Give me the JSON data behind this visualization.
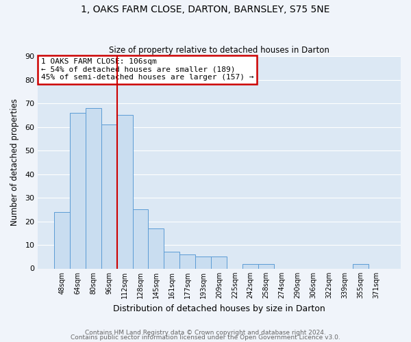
{
  "title1": "1, OAKS FARM CLOSE, DARTON, BARNSLEY, S75 5NE",
  "title2": "Size of property relative to detached houses in Darton",
  "xlabel": "Distribution of detached houses by size in Darton",
  "ylabel": "Number of detached properties",
  "bar_labels": [
    "48sqm",
    "64sqm",
    "80sqm",
    "96sqm",
    "112sqm",
    "128sqm",
    "145sqm",
    "161sqm",
    "177sqm",
    "193sqm",
    "209sqm",
    "225sqm",
    "242sqm",
    "258sqm",
    "274sqm",
    "290sqm",
    "306sqm",
    "322sqm",
    "339sqm",
    "355sqm",
    "371sqm"
  ],
  "bar_values": [
    24,
    66,
    68,
    61,
    65,
    25,
    17,
    7,
    6,
    5,
    5,
    0,
    2,
    2,
    0,
    0,
    0,
    0,
    0,
    2,
    0
  ],
  "bar_color": "#c9ddf0",
  "bar_edge_color": "#5b9bd5",
  "red_line_index": 3.5,
  "annotation_text": "1 OAKS FARM CLOSE: 106sqm\n← 54% of detached houses are smaller (189)\n45% of semi-detached houses are larger (157) →",
  "annotation_box_color": "white",
  "annotation_box_edge": "#cc0000",
  "ylim": [
    0,
    90
  ],
  "yticks": [
    0,
    10,
    20,
    30,
    40,
    50,
    60,
    70,
    80,
    90
  ],
  "footer1": "Contains HM Land Registry data © Crown copyright and database right 2024.",
  "footer2": "Contains public sector information licensed under the Open Government Licence v3.0.",
  "fig_background": "#f0f4fa",
  "plot_background": "#dce8f4",
  "grid_color": "#ffffff",
  "title1_fontsize": 10,
  "title2_fontsize": 8.5
}
